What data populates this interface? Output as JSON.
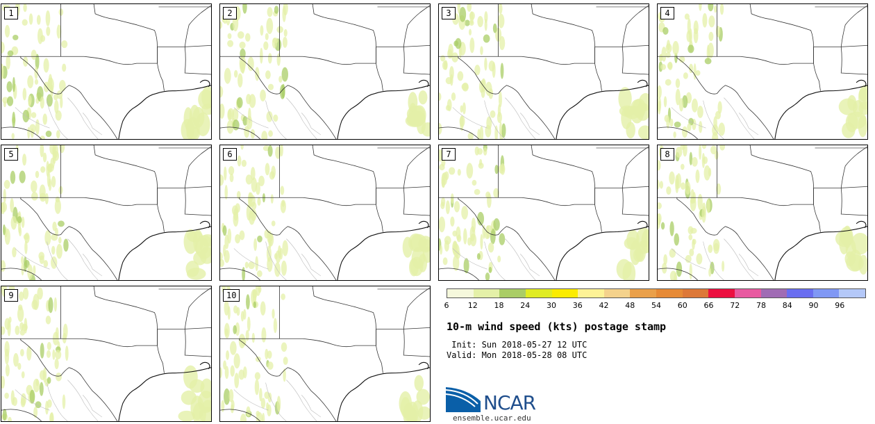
{
  "panels": [
    {
      "label": "1"
    },
    {
      "label": "2"
    },
    {
      "label": "3"
    },
    {
      "label": "4"
    },
    {
      "label": "5"
    },
    {
      "label": "6"
    },
    {
      "label": "7"
    },
    {
      "label": "8"
    },
    {
      "label": "9"
    },
    {
      "label": "10"
    }
  ],
  "colorbar": {
    "colors": [
      "#f5f8dc",
      "#e4f0a8",
      "#aacd66",
      "#e0ec24",
      "#fbec00",
      "#fdf296",
      "#f4d28c",
      "#eaa04a",
      "#e68a36",
      "#dd7838",
      "#ec1040",
      "#e85aa0",
      "#a06cb4",
      "#6a6ef0",
      "#8098f4",
      "#b4c8f8"
    ],
    "tick_labels": [
      "6",
      "12",
      "18",
      "24",
      "30",
      "36",
      "42",
      "48",
      "54",
      "60",
      "66",
      "72",
      "78",
      "84",
      "90",
      "96"
    ]
  },
  "title": "10-m wind speed (kts) postage stamp",
  "init": " Init: Sun 2018-05-27 12 UTC",
  "valid": "Valid: Mon 2018-05-28 08 UTC",
  "logo": {
    "text": "NCAR",
    "url": "ensemble.ucar.edu",
    "colors": [
      "#0a5fa8",
      "#3d8fd0",
      "#1f4e8c"
    ]
  },
  "map_colors": {
    "border": "#333333",
    "state": "#444444",
    "county": "#999999",
    "wind_light": "#e4f0a8",
    "wind_mid": "#aacd66"
  }
}
